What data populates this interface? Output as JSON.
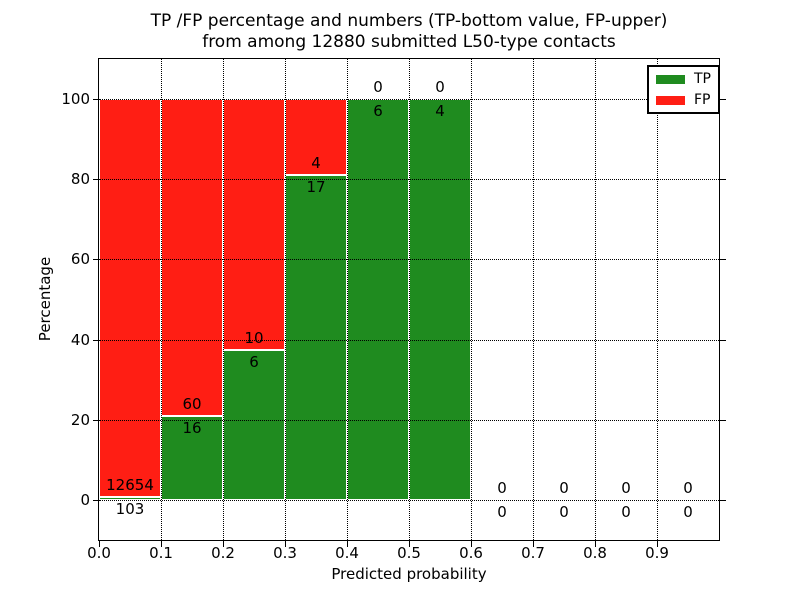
{
  "title": {
    "line1": "TP /FP percentage and numbers (TP-bottom value, FP-upper)",
    "line2": "from among 12880 submitted L50-type contacts"
  },
  "axes": {
    "xlabel": "Predicted probability",
    "ylabel": "Percentage"
  },
  "legend": {
    "tp_label": "TP",
    "fp_label": "FP"
  },
  "colors": {
    "tp": "#1f8b1f",
    "fp": "#ff1e14",
    "grid": "#000000",
    "bar_edge": "#ffffff",
    "background": "#ffffff",
    "text": "#000000"
  },
  "chart_data": {
    "type": "bar",
    "stacked": true,
    "title": "TP /FP percentage and numbers (TP-bottom value, FP-upper) from among 12880 submitted L50-type contacts",
    "xlabel": "Predicted probability",
    "ylabel": "Percentage",
    "xlim": [
      0.0,
      1.0
    ],
    "ylim": [
      -10,
      110
    ],
    "grid": "dotted",
    "legend_position": "upper-right",
    "total_submitted": 12880,
    "bin_width": 0.1,
    "categories": [
      "0.0-0.1",
      "0.1-0.2",
      "0.2-0.3",
      "0.3-0.4",
      "0.4-0.5",
      "0.5-0.6",
      "0.6-0.7",
      "0.7-0.8",
      "0.8-0.9",
      "0.9-1.0"
    ],
    "series": [
      {
        "name": "TP",
        "color": "#1f8b1f",
        "counts": [
          103,
          16,
          6,
          17,
          6,
          4,
          0,
          0,
          0,
          0
        ],
        "pct": [
          0.81,
          21.05,
          37.5,
          80.95,
          100,
          100,
          0,
          0,
          0,
          0
        ]
      },
      {
        "name": "FP",
        "color": "#ff1e14",
        "counts": [
          12654,
          60,
          10,
          4,
          0,
          0,
          0,
          0,
          0,
          0
        ],
        "pct": [
          99.19,
          78.95,
          62.5,
          19.05,
          0,
          0,
          0,
          0,
          0,
          0
        ]
      }
    ],
    "bins": [
      {
        "range": [
          0.0,
          0.1
        ],
        "tp_count": 103,
        "fp_count": 12654,
        "tp_pct": 0.81,
        "fp_pct": 99.19
      },
      {
        "range": [
          0.1,
          0.2
        ],
        "tp_count": 16,
        "fp_count": 60,
        "tp_pct": 21.05,
        "fp_pct": 78.95
      },
      {
        "range": [
          0.2,
          0.3
        ],
        "tp_count": 6,
        "fp_count": 10,
        "tp_pct": 37.5,
        "fp_pct": 62.5
      },
      {
        "range": [
          0.3,
          0.4
        ],
        "tp_count": 17,
        "fp_count": 4,
        "tp_pct": 80.95,
        "fp_pct": 19.05
      },
      {
        "range": [
          0.4,
          0.5
        ],
        "tp_count": 6,
        "fp_count": 0,
        "tp_pct": 100,
        "fp_pct": 0
      },
      {
        "range": [
          0.5,
          0.6
        ],
        "tp_count": 4,
        "fp_count": 0,
        "tp_pct": 100,
        "fp_pct": 0
      },
      {
        "range": [
          0.6,
          0.7
        ],
        "tp_count": 0,
        "fp_count": 0,
        "tp_pct": 0,
        "fp_pct": 0
      },
      {
        "range": [
          0.7,
          0.8
        ],
        "tp_count": 0,
        "fp_count": 0,
        "tp_pct": 0,
        "fp_pct": 0
      },
      {
        "range": [
          0.8,
          0.9
        ],
        "tp_count": 0,
        "fp_count": 0,
        "tp_pct": 0,
        "fp_pct": 0
      },
      {
        "range": [
          0.9,
          1.0
        ],
        "tp_count": 0,
        "fp_count": 0,
        "tp_pct": 0,
        "fp_pct": 0
      }
    ],
    "xtick_values": [
      0.0,
      0.1,
      0.2,
      0.3,
      0.4,
      0.5,
      0.6,
      0.7,
      0.8,
      0.9
    ],
    "xtick_labels": [
      "0.0",
      "0.1",
      "0.2",
      "0.3",
      "0.4",
      "0.5",
      "0.6",
      "0.7",
      "0.8",
      "0.9"
    ],
    "ytick_values": [
      0,
      20,
      40,
      60,
      80,
      100
    ],
    "ytick_labels": [
      "0",
      "20",
      "40",
      "60",
      "80",
      "100"
    ]
  }
}
